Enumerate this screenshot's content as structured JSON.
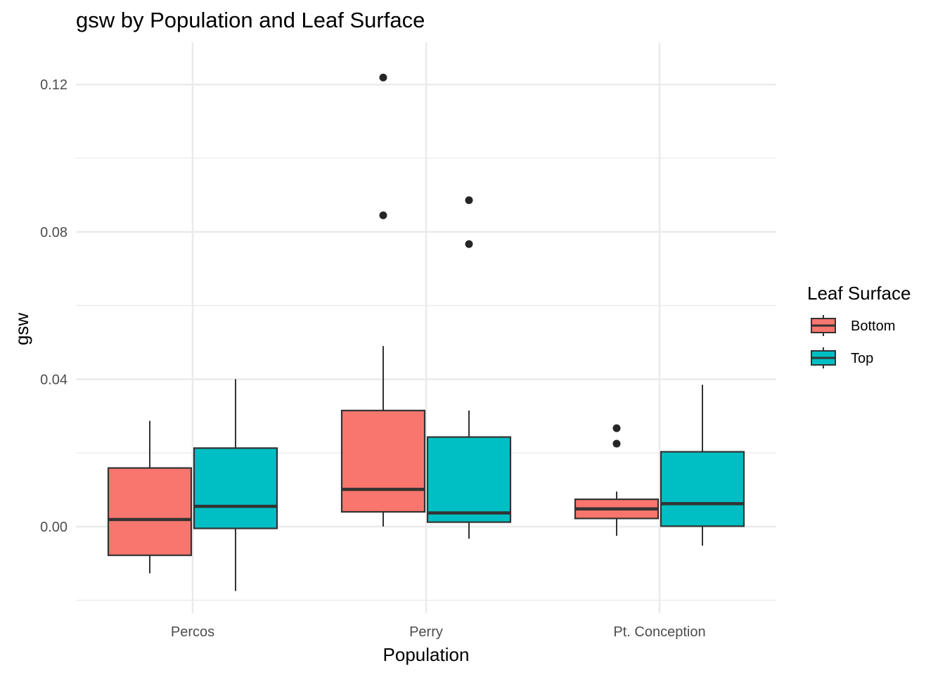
{
  "chart_data": {
    "type": "boxplot",
    "title": "gsw by Population and Leaf Surface",
    "xlabel": "Population",
    "ylabel": "gsw",
    "categories": [
      "Percos",
      "Perry",
      "Pt. Conception"
    ],
    "yticks": [
      0.0,
      0.04,
      0.08,
      0.12
    ],
    "ytick_labels": [
      "0.00",
      "0.04",
      "0.08",
      "0.12"
    ],
    "ylim": [
      -0.0235,
      0.1315
    ],
    "grid": true,
    "legend": {
      "title": "Leaf Surface",
      "position": "right"
    },
    "series": [
      {
        "name": "Bottom",
        "color": "#F8766D",
        "boxes": [
          {
            "category": "Percos",
            "min": -0.0127,
            "q1": -0.0078,
            "median": 0.0019,
            "q3": 0.0159,
            "max": 0.0287,
            "outliers": []
          },
          {
            "category": "Perry",
            "min": 0.0,
            "q1": 0.004,
            "median": 0.0101,
            "q3": 0.0315,
            "max": 0.049,
            "outliers": [
              0.0845,
              0.1219
            ]
          },
          {
            "category": "Pt. Conception",
            "min": -0.0025,
            "q1": 0.0022,
            "median": 0.0048,
            "q3": 0.0074,
            "max": 0.0095,
            "outliers": [
              0.0225,
              0.0267
            ]
          }
        ]
      },
      {
        "name": "Top",
        "color": "#00BFC4",
        "boxes": [
          {
            "category": "Percos",
            "min": -0.0175,
            "q1": -0.0005,
            "median": 0.0055,
            "q3": 0.0213,
            "max": 0.04,
            "outliers": []
          },
          {
            "category": "Perry",
            "min": -0.0033,
            "q1": 0.0012,
            "median": 0.0037,
            "q3": 0.0243,
            "max": 0.0315,
            "outliers": [
              0.0767,
              0.0886
            ]
          },
          {
            "category": "Pt. Conception",
            "min": -0.0052,
            "q1": 0.0001,
            "median": 0.0062,
            "q3": 0.0203,
            "max": 0.0385,
            "outliers": []
          }
        ]
      }
    ]
  }
}
